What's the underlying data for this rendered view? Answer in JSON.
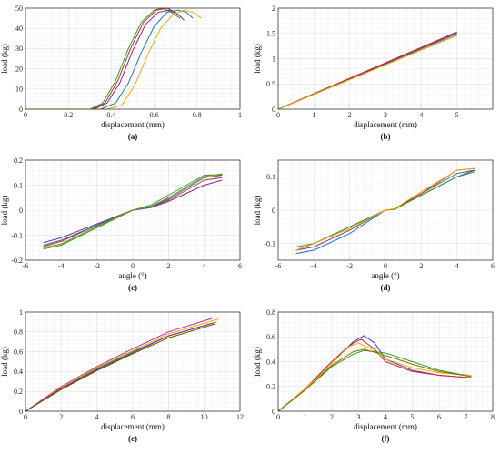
{
  "chart_data": [
    {
      "id": "a",
      "type": "line",
      "panel_label": "(a)",
      "xlabel": "displacement (mm)",
      "ylabel": "load (kg)",
      "xlim": [
        0,
        1
      ],
      "ylim": [
        0,
        50
      ],
      "xticks": [
        0,
        0.2,
        0.4,
        0.6,
        0.8,
        1
      ],
      "yticks": [
        0,
        10,
        20,
        30,
        40,
        50
      ],
      "xtick_labels": [
        "0",
        "0.2",
        "0.4",
        "0.6",
        "0.8",
        "1"
      ],
      "ytick_labels": [
        "0",
        "10",
        "20",
        "30",
        "40",
        "50"
      ],
      "grid": true,
      "series": [
        {
          "color": "#2ca02c",
          "x": [
            0,
            0.3,
            0.36,
            0.42,
            0.48,
            0.54,
            0.6,
            0.64,
            0.68,
            0.72
          ],
          "y": [
            0,
            0,
            3,
            14,
            30,
            43,
            49,
            50,
            48,
            45
          ]
        },
        {
          "color": "#d62728",
          "x": [
            0,
            0.31,
            0.37,
            0.43,
            0.49,
            0.55,
            0.61,
            0.66,
            0.7,
            0.73
          ],
          "y": [
            0,
            0,
            3,
            14,
            30,
            43,
            49,
            50,
            48,
            45
          ]
        },
        {
          "color": "#7b2d8e",
          "x": [
            0,
            0.32,
            0.38,
            0.44,
            0.5,
            0.56,
            0.62,
            0.67,
            0.71,
            0.74
          ],
          "y": [
            0,
            0,
            3,
            13,
            29,
            42,
            48,
            49,
            47,
            44
          ]
        },
        {
          "color": "#1f77b4",
          "x": [
            0,
            0.35,
            0.42,
            0.48,
            0.54,
            0.6,
            0.66,
            0.71,
            0.75,
            0.78
          ],
          "y": [
            0,
            0,
            3,
            13,
            28,
            41,
            48,
            49,
            48,
            45
          ]
        },
        {
          "color": "#f2a900",
          "x": [
            0,
            0.38,
            0.45,
            0.51,
            0.57,
            0.63,
            0.69,
            0.74,
            0.78,
            0.82
          ],
          "y": [
            0,
            0,
            2,
            12,
            27,
            40,
            47,
            49,
            48,
            45
          ]
        }
      ]
    },
    {
      "id": "b",
      "type": "line",
      "panel_label": "(b)",
      "xlabel": "displacement (mm)",
      "ylabel": "load (kg)",
      "xlim": [
        0,
        6
      ],
      "ylim": [
        0,
        2
      ],
      "xticks": [
        0,
        1,
        2,
        3,
        4,
        5,
        6
      ],
      "yticks": [
        0,
        0.5,
        1,
        1.5,
        2
      ],
      "xtick_labels": [
        "0",
        "1",
        "2",
        "3",
        "4",
        "5",
        ""
      ],
      "ytick_labels": [
        "0",
        "0.5",
        "1",
        "1.5",
        "2"
      ],
      "grid": true,
      "series": [
        {
          "color": "#1f77b4",
          "x": [
            0,
            5
          ],
          "y": [
            0,
            1.52
          ]
        },
        {
          "color": "#d62728",
          "x": [
            0,
            5
          ],
          "y": [
            0,
            1.53
          ]
        },
        {
          "color": "#7b2d8e",
          "x": [
            0,
            5
          ],
          "y": [
            0,
            1.5
          ]
        },
        {
          "color": "#2ca02c",
          "x": [
            0,
            5
          ],
          "y": [
            0,
            1.47
          ]
        },
        {
          "color": "#f2a900",
          "x": [
            0,
            5
          ],
          "y": [
            0,
            1.46
          ]
        }
      ]
    },
    {
      "id": "c",
      "type": "line",
      "panel_label": "(c)",
      "xlabel": "angle (°)",
      "ylabel": "load (kg)",
      "xlim": [
        -6,
        6
      ],
      "ylim": [
        -0.2,
        0.2
      ],
      "xticks": [
        -6,
        -4,
        -2,
        0,
        2,
        4,
        6
      ],
      "yticks": [
        -0.2,
        -0.1,
        0,
        0.1,
        0.2
      ],
      "xtick_labels": [
        "-6",
        "-4",
        "-2",
        "0",
        "2",
        "4",
        "6"
      ],
      "ytick_labels": [
        "-0.2",
        "-0.1",
        "0",
        "0.1",
        "0.2"
      ],
      "grid": true,
      "series": [
        {
          "color": "#2ca02c",
          "x": [
            -5,
            -4,
            -2,
            0,
            0.5,
            1,
            2,
            4,
            5
          ],
          "y": [
            -0.155,
            -0.14,
            -0.07,
            0,
            0.01,
            0.02,
            0.06,
            0.14,
            0.142
          ]
        },
        {
          "color": "#d62728",
          "x": [
            -5,
            -4,
            -2,
            0,
            0.5,
            1,
            2,
            4,
            5
          ],
          "y": [
            -0.145,
            -0.125,
            -0.06,
            0,
            0.008,
            0.012,
            0.04,
            0.12,
            0.13
          ]
        },
        {
          "color": "#7b2d8e",
          "x": [
            -5,
            -4,
            -2,
            0,
            0.5,
            1,
            2,
            4,
            5
          ],
          "y": [
            -0.13,
            -0.11,
            -0.055,
            0,
            0.005,
            0.01,
            0.035,
            0.1,
            0.12
          ]
        },
        {
          "color": "#1f77b4",
          "x": [
            -5,
            -4,
            -2,
            0,
            0.5,
            1,
            2,
            4,
            5
          ],
          "y": [
            -0.14,
            -0.12,
            -0.06,
            0,
            0.007,
            0.012,
            0.045,
            0.13,
            0.14
          ]
        },
        {
          "color": "#8c8c00",
          "x": [
            -5,
            -4,
            -2,
            0,
            0.5,
            1,
            2,
            4,
            5
          ],
          "y": [
            -0.15,
            -0.135,
            -0.065,
            0,
            0.009,
            0.015,
            0.05,
            0.135,
            0.145
          ]
        }
      ]
    },
    {
      "id": "d",
      "type": "line",
      "panel_label": "(d)",
      "xlabel": "angle (°)",
      "ylabel": "load (kg)",
      "xlim": [
        -6,
        6
      ],
      "ylim": [
        -0.15,
        0.15
      ],
      "xticks": [
        -6,
        -4,
        -2,
        0,
        2,
        4,
        6
      ],
      "yticks": [
        -0.1,
        0,
        0.1
      ],
      "xtick_labels": [
        "-6",
        "-4",
        "-2",
        "0",
        "2",
        "4",
        "6"
      ],
      "ytick_labels": [
        "-0.1",
        "0",
        "0.1"
      ],
      "grid": true,
      "series": [
        {
          "color": "#1f77b4",
          "x": [
            -5,
            -4,
            -2,
            0,
            0.5,
            2,
            4,
            5
          ],
          "y": [
            -0.13,
            -0.12,
            -0.07,
            0,
            0.003,
            0.05,
            0.11,
            0.12
          ]
        },
        {
          "color": "#d62728",
          "x": [
            -5,
            -4,
            -2,
            0,
            0.5,
            2,
            4,
            5
          ],
          "y": [
            -0.12,
            -0.1,
            -0.05,
            0,
            0.004,
            0.05,
            0.12,
            0.125
          ]
        },
        {
          "color": "#7b2d8e",
          "x": [
            -5,
            -4,
            -2,
            0,
            0.5,
            2,
            4,
            5
          ],
          "y": [
            -0.12,
            -0.11,
            -0.06,
            0,
            0.003,
            0.045,
            0.1,
            0.12
          ]
        },
        {
          "color": "#2ca02c",
          "x": [
            -5,
            -4,
            -2,
            0,
            0.5,
            2,
            4,
            5
          ],
          "y": [
            -0.11,
            -0.1,
            -0.05,
            0,
            0.002,
            0.045,
            0.1,
            0.115
          ]
        },
        {
          "color": "#f2a900",
          "x": [
            -5,
            -4,
            -2,
            0,
            0.5,
            2,
            4,
            5
          ],
          "y": [
            -0.12,
            -0.1,
            -0.055,
            0,
            0.004,
            0.055,
            0.12,
            0.125
          ]
        }
      ]
    },
    {
      "id": "e",
      "type": "line",
      "panel_label": "(e)",
      "xlabel": "displacement (mm)",
      "ylabel": "load (kg)",
      "xlim": [
        0,
        12
      ],
      "ylim": [
        0,
        1
      ],
      "xticks": [
        0,
        2,
        4,
        6,
        8,
        10,
        12
      ],
      "yticks": [
        0,
        0.2,
        0.4,
        0.6,
        0.8,
        1
      ],
      "xtick_labels": [
        "0",
        "2",
        "4",
        "6",
        "8",
        "10",
        "12"
      ],
      "ytick_labels": [
        "0",
        "0.2",
        "0.4",
        "0.6",
        "0.8",
        "1"
      ],
      "grid": true,
      "series": [
        {
          "color": "#c724b1",
          "x": [
            0,
            2,
            4,
            6,
            8,
            10.5
          ],
          "y": [
            0,
            0.25,
            0.45,
            0.63,
            0.8,
            0.94
          ]
        },
        {
          "color": "#f2a900",
          "x": [
            0,
            2,
            4,
            6,
            8,
            10.8
          ],
          "y": [
            0,
            0.24,
            0.44,
            0.61,
            0.78,
            0.93
          ]
        },
        {
          "color": "#2ca02c",
          "x": [
            0,
            2,
            4,
            6,
            8,
            10.7
          ],
          "y": [
            0,
            0.23,
            0.43,
            0.6,
            0.76,
            0.9
          ]
        },
        {
          "color": "#7b2d8e",
          "x": [
            0,
            2,
            4,
            6,
            8,
            10.5
          ],
          "y": [
            0,
            0.23,
            0.42,
            0.59,
            0.76,
            0.89
          ]
        },
        {
          "color": "#5b4a00",
          "x": [
            0,
            2,
            4,
            6,
            8,
            10.6
          ],
          "y": [
            0,
            0.22,
            0.41,
            0.58,
            0.74,
            0.88
          ]
        }
      ]
    },
    {
      "id": "f",
      "type": "line",
      "panel_label": "(f)",
      "xlabel": "displacement (mm)",
      "ylabel": "load (kg)",
      "xlim": [
        0,
        8
      ],
      "ylim": [
        0,
        0.8
      ],
      "xticks": [
        0,
        1,
        2,
        3,
        4,
        5,
        6,
        7,
        8
      ],
      "yticks": [
        0,
        0.2,
        0.4,
        0.6,
        0.8
      ],
      "xtick_labels": [
        "0",
        "1",
        "2",
        "3",
        "4",
        "5",
        "6",
        "7",
        "8"
      ],
      "ytick_labels": [
        "0",
        "0.2",
        "0.4",
        "0.6",
        "0.8"
      ],
      "grid": true,
      "series": [
        {
          "color": "#3a3ac8",
          "x": [
            0,
            1,
            2,
            2.8,
            3.2,
            3.6,
            4,
            5,
            6,
            7.2
          ],
          "y": [
            0,
            0.18,
            0.4,
            0.56,
            0.61,
            0.55,
            0.42,
            0.33,
            0.29,
            0.27
          ]
        },
        {
          "color": "#d62728",
          "x": [
            0,
            1,
            2,
            2.8,
            3.1,
            3.6,
            4,
            5,
            6,
            7.2
          ],
          "y": [
            0,
            0.18,
            0.4,
            0.55,
            0.58,
            0.5,
            0.4,
            0.32,
            0.29,
            0.27
          ]
        },
        {
          "color": "#f2a900",
          "x": [
            0,
            1,
            2,
            2.6,
            3,
            3.5,
            4,
            5,
            6,
            7.2
          ],
          "y": [
            0,
            0.18,
            0.38,
            0.52,
            0.55,
            0.5,
            0.42,
            0.35,
            0.31,
            0.29
          ]
        },
        {
          "color": "#2ca02c",
          "x": [
            0,
            1,
            2,
            2.8,
            3.2,
            4,
            5,
            6,
            7.2
          ],
          "y": [
            0,
            0.17,
            0.36,
            0.46,
            0.49,
            0.47,
            0.4,
            0.33,
            0.28
          ]
        },
        {
          "color": "#8c6d00",
          "x": [
            0,
            1,
            2,
            2.8,
            3.2,
            4,
            5,
            6,
            7.2
          ],
          "y": [
            0,
            0.17,
            0.37,
            0.48,
            0.5,
            0.45,
            0.38,
            0.32,
            0.28
          ]
        }
      ]
    }
  ]
}
